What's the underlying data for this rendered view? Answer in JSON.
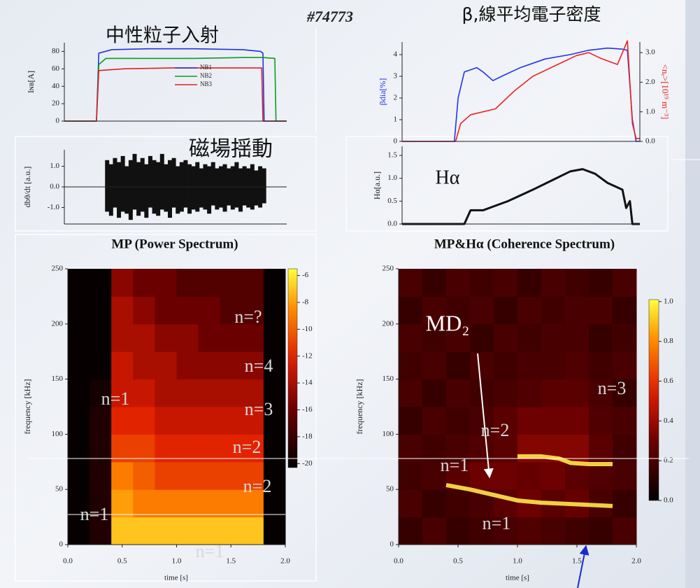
{
  "shot": "#74773",
  "chart_data": [
    {
      "type": "line",
      "title": "中性粒子入射",
      "ylabel": "Iɴʙ[A]",
      "xlim": [
        0.1,
        1.97
      ],
      "ylim": [
        0,
        90
      ],
      "yticks": [
        0,
        20,
        40,
        60,
        80
      ],
      "legend": true,
      "series": [
        {
          "name": "NB1",
          "color": "#2233dd",
          "x": [
            0.1,
            0.37,
            0.39,
            0.5,
            0.8,
            1.2,
            1.6,
            1.75,
            1.77,
            1.78,
            1.97
          ],
          "values": [
            0,
            0,
            78,
            82,
            83,
            83,
            82,
            80,
            78,
            0,
            0
          ]
        },
        {
          "name": "NB2",
          "color": "#119922",
          "x": [
            0.1,
            0.37,
            0.39,
            0.45,
            0.8,
            1.2,
            1.6,
            1.77,
            1.87,
            1.88,
            1.97
          ],
          "values": [
            0,
            0,
            65,
            72,
            72,
            72,
            73,
            73,
            72,
            0,
            0
          ]
        },
        {
          "name": "NB3",
          "color": "#dd2222",
          "x": [
            0.1,
            0.37,
            0.39,
            0.6,
            1.0,
            1.4,
            1.76,
            1.77,
            1.97
          ],
          "values": [
            0,
            0,
            58,
            60,
            61,
            61,
            61,
            0,
            0
          ]
        }
      ]
    },
    {
      "type": "band",
      "title": "磁場揺動",
      "ylabel": "dbθ/dt [a.u.]",
      "xlim": [
        0.1,
        1.97
      ],
      "ylim": [
        -1.8,
        1.8
      ],
      "yticks": [
        {
          "value": -1,
          "label": "-1.0"
        },
        {
          "value": 0,
          "label": "0.0"
        },
        {
          "value": 1,
          "label": "1.0"
        }
      ],
      "color": "#111111",
      "x": [
        0.46,
        0.493,
        0.526,
        0.559,
        0.592,
        0.625,
        0.658,
        0.691,
        0.724,
        0.757,
        0.79,
        0.823,
        0.856,
        0.889,
        0.922,
        0.955,
        0.988,
        1.021,
        1.054,
        1.087,
        1.12,
        1.153,
        1.186,
        1.219,
        1.252,
        1.285,
        1.318,
        1.351,
        1.384,
        1.417,
        1.45,
        1.483,
        1.516,
        1.549,
        1.582,
        1.615,
        1.648,
        1.681,
        1.714,
        1.747,
        1.78
      ],
      "high": [
        1.3,
        1.1,
        1.4,
        1.2,
        1.5,
        1.0,
        1.3,
        1.6,
        1.2,
        1.4,
        1.1,
        1.5,
        1.3,
        1.2,
        1.6,
        1.1,
        1.3,
        1.4,
        1.0,
        1.2,
        1.3,
        1.1,
        1.0,
        1.2,
        0.9,
        1.1,
        1.0,
        1.2,
        0.9,
        1.0,
        1.1,
        0.9,
        1.0,
        1.2,
        0.9,
        1.0,
        0.9,
        1.1,
        0.8,
        1.0,
        0.9
      ],
      "low": [
        -1.2,
        -1.4,
        -1.0,
        -1.5,
        -1.2,
        -1.3,
        -1.6,
        -1.1,
        -1.4,
        -1.2,
        -1.5,
        -1.0,
        -1.3,
        -1.4,
        -1.1,
        -1.2,
        -1.5,
        -1.0,
        -1.3,
        -1.2,
        -1.0,
        -1.3,
        -1.1,
        -1.2,
        -1.0,
        -1.1,
        -1.3,
        -0.9,
        -1.1,
        -1.0,
        -1.2,
        -0.9,
        -1.1,
        -1.0,
        -1.2,
        -0.9,
        -1.0,
        -1.1,
        -0.9,
        -1.0,
        -0.8
      ]
    },
    {
      "type": "line",
      "title": "β,線平均電子密度",
      "ylabel": "βdia[%]",
      "y2label": "<nₑ>[10¹⁹ m⁻³]",
      "xlim": [
        -0.05,
        1.86
      ],
      "ylim": [
        0,
        4.58
      ],
      "yticks": [
        0,
        1,
        2,
        3,
        4
      ],
      "y2lim": [
        0,
        3.36
      ],
      "y2ticks": [
        {
          "value": 0,
          "label": "0.0"
        },
        {
          "value": 1,
          "label": "1.0"
        },
        {
          "value": 2,
          "label": "2.0"
        },
        {
          "value": 3,
          "label": "3.0"
        }
      ],
      "series": [
        {
          "color": "#2233ee",
          "x": [
            -0.05,
            0.37,
            0.4,
            0.45,
            0.55,
            0.6,
            0.68,
            0.75,
            0.9,
            1.1,
            1.3,
            1.45,
            1.6,
            1.72,
            1.76,
            1.8,
            1.83,
            1.86
          ],
          "values": [
            0,
            0,
            2.0,
            3.2,
            3.4,
            3.2,
            2.8,
            3.0,
            3.4,
            3.8,
            4.0,
            4.2,
            4.3,
            4.25,
            4.2,
            1.0,
            0,
            0
          ]
        },
        {
          "color": "#ee2222",
          "axis": "y2",
          "x": [
            -0.05,
            0.38,
            0.42,
            0.5,
            0.7,
            0.85,
            1.0,
            1.2,
            1.35,
            1.45,
            1.55,
            1.68,
            1.73,
            1.76,
            1.8,
            1.83,
            1.86
          ],
          "values": [
            0,
            0,
            0.6,
            0.9,
            1.1,
            1.7,
            2.2,
            2.6,
            2.9,
            3.0,
            2.8,
            2.6,
            3.1,
            3.4,
            0.6,
            0.1,
            0.1
          ]
        }
      ]
    },
    {
      "type": "line",
      "ylabel": "Hα[a.u.]",
      "xlim": [
        -0.05,
        1.86
      ],
      "ylim": [
        0,
        1.7
      ],
      "yticks": [
        {
          "value": 0,
          "label": "0.0"
        },
        0.5,
        {
          "value": 1,
          "label": "1.0"
        },
        1.5
      ],
      "annotations": [
        "Hα"
      ],
      "series": [
        {
          "color": "#111111",
          "x": [
            -0.05,
            0.4,
            0.45,
            0.5,
            0.6,
            0.7,
            0.8,
            1.0,
            1.15,
            1.3,
            1.4,
            1.5,
            1.6,
            1.68,
            1.72,
            1.75,
            1.78,
            1.8,
            1.86
          ],
          "values": [
            0,
            0,
            0,
            0.3,
            0.3,
            0.4,
            0.5,
            0.75,
            0.95,
            1.15,
            1.2,
            1.1,
            0.9,
            0.8,
            0.75,
            0.35,
            0.5,
            0,
            0
          ]
        }
      ]
    },
    {
      "type": "heatmap",
      "title": "MP (Power Spectrum)",
      "xlabel": "time [s]",
      "ylabel": "frequency [kHz]",
      "xlim": [
        0,
        2
      ],
      "ylim": [
        0,
        250
      ],
      "xticks": [
        {
          "value": 0,
          "label": "0.0"
        },
        0.5,
        {
          "value": 1,
          "label": "1.0"
        },
        1.5,
        {
          "value": 2,
          "label": "2.0"
        }
      ],
      "yticks": [
        0,
        50,
        100,
        150,
        200,
        250
      ],
      "clim": [
        -20.3,
        -5.5
      ],
      "cticks": [
        -6,
        -8,
        -10,
        -12,
        -14,
        -16,
        -18,
        -20
      ],
      "xbins": [
        0,
        0.2,
        0.4,
        0.6,
        0.8,
        1.0,
        1.2,
        1.4,
        1.6,
        1.8,
        2.0
      ],
      "ybins": [
        0,
        25,
        50,
        75,
        100,
        125,
        150,
        175,
        200,
        225,
        250
      ],
      "values": [
        [
          -20,
          -19,
          -7,
          -7,
          -7,
          -7,
          -7,
          -7,
          -7,
          -20
        ],
        [
          -20,
          -19,
          -8,
          -9,
          -9,
          -9,
          -9,
          -9,
          -9,
          -20
        ],
        [
          -20,
          -19,
          -9,
          -10,
          -11,
          -11,
          -11,
          -11,
          -11,
          -20
        ],
        [
          -20,
          -19,
          -11,
          -11,
          -12,
          -12,
          -12,
          -12,
          -12,
          -20
        ],
        [
          -20,
          -19,
          -12,
          -12,
          -13,
          -13,
          -13,
          -13,
          -13,
          -20
        ],
        [
          -20,
          -19.5,
          -13,
          -13,
          -14,
          -14,
          -14,
          -14,
          -14,
          -20
        ],
        [
          -20,
          -20,
          -13,
          -14,
          -14,
          -15,
          -15,
          -15,
          -15,
          -20
        ],
        [
          -20,
          -20,
          -14,
          -14,
          -15,
          -15,
          -16,
          -16,
          -16,
          -20
        ],
        [
          -20,
          -20,
          -14,
          -15,
          -16,
          -16,
          -16,
          -17,
          -17,
          -20
        ],
        [
          -20,
          -20,
          -15,
          -16,
          -16,
          -17,
          -17,
          -17,
          -17,
          -20
        ]
      ],
      "annotations": [
        "n=?",
        "n=4",
        "n=1",
        "n=3",
        "n=2",
        "n=2",
        "n=1",
        "n=1"
      ]
    },
    {
      "type": "heatmap",
      "title": "MP&Hα (Coherence Spectrum)",
      "xlabel": "time [s]",
      "ylabel": "frequency [kHz]",
      "xlim": [
        0,
        2
      ],
      "ylim": [
        0,
        250
      ],
      "xticks": [
        {
          "value": 0,
          "label": "0.0"
        },
        0.5,
        {
          "value": 1,
          "label": "1.0"
        },
        1.5,
        {
          "value": 2,
          "label": "2.0"
        }
      ],
      "yticks": [
        0,
        50,
        100,
        150,
        200,
        250
      ],
      "clim": [
        0,
        1.01
      ],
      "cticks": [
        {
          "value": 0,
          "label": "0.0"
        },
        0.2,
        0.4,
        0.6,
        0.8,
        {
          "value": 1,
          "label": "1.0"
        }
      ],
      "xbins": [
        0,
        0.2,
        0.4,
        0.6,
        0.8,
        1.0,
        1.2,
        1.4,
        1.6,
        1.8,
        2.0
      ],
      "ybins": [
        0,
        25,
        50,
        75,
        100,
        125,
        150,
        175,
        200,
        225,
        250
      ],
      "values": [
        [
          0.15,
          0.2,
          0.15,
          0.18,
          0.2,
          0.22,
          0.2,
          0.18,
          0.15,
          0.2
        ],
        [
          0.2,
          0.15,
          0.18,
          0.2,
          0.25,
          0.3,
          0.25,
          0.28,
          0.2,
          0.15
        ],
        [
          0.18,
          0.2,
          0.25,
          0.3,
          0.3,
          0.28,
          0.3,
          0.25,
          0.22,
          0.2
        ],
        [
          0.2,
          0.18,
          0.2,
          0.22,
          0.25,
          0.35,
          0.35,
          0.35,
          0.25,
          0.18
        ],
        [
          0.15,
          0.2,
          0.18,
          0.2,
          0.25,
          0.3,
          0.3,
          0.3,
          0.22,
          0.2
        ],
        [
          0.2,
          0.15,
          0.2,
          0.18,
          0.2,
          0.22,
          0.25,
          0.25,
          0.2,
          0.15
        ],
        [
          0.18,
          0.2,
          0.15,
          0.2,
          0.18,
          0.2,
          0.2,
          0.22,
          0.18,
          0.2
        ],
        [
          0.2,
          0.18,
          0.2,
          0.15,
          0.2,
          0.18,
          0.2,
          0.2,
          0.15,
          0.18
        ],
        [
          0.15,
          0.2,
          0.18,
          0.2,
          0.15,
          0.2,
          0.18,
          0.2,
          0.2,
          0.15
        ],
        [
          0.2,
          0.15,
          0.2,
          0.18,
          0.2,
          0.15,
          0.2,
          0.18,
          0.15,
          0.2
        ]
      ],
      "ridges": [
        {
          "color": "#ffe84a",
          "x": [
            0.4,
            0.6,
            0.8,
            1.0,
            1.2,
            1.4,
            1.6,
            1.8
          ],
          "values": [
            54,
            50,
            45,
            40,
            38,
            37,
            36,
            35
          ]
        },
        {
          "color": "#ffe84a",
          "x": [
            1.0,
            1.2,
            1.35,
            1.45,
            1.6,
            1.8
          ],
          "values": [
            80,
            80,
            78,
            74,
            73,
            73
          ]
        }
      ],
      "annotations": [
        "MD₂",
        "n=3",
        "n=2",
        "n=1",
        "n=1"
      ]
    }
  ]
}
